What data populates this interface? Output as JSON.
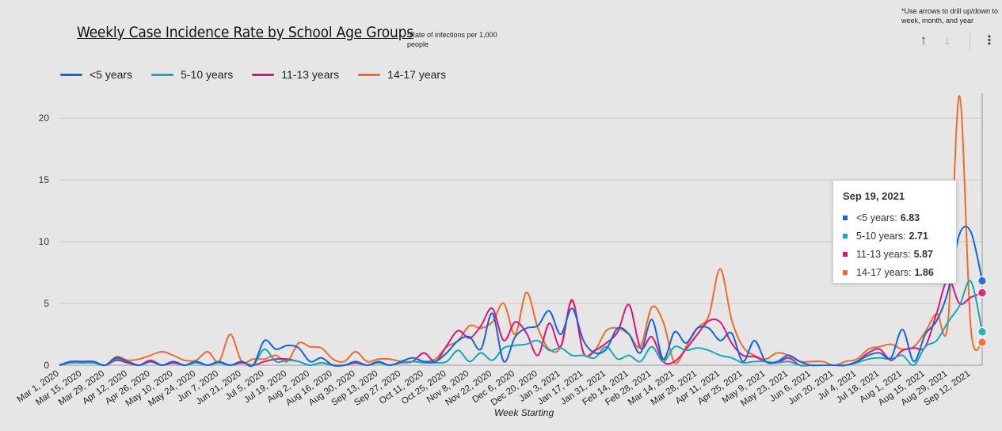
{
  "header": {
    "title": "Weekly Case Incidence Rate by School Age Groups",
    "subnote": "*Rate of infections per 1,000 people",
    "drill_note": "*Use arrows to drill up/down to week, month, and year"
  },
  "controls": {
    "up_icon": "arrow-up-icon",
    "down_icon": "arrow-down-icon",
    "menu_icon": "more-vert-icon",
    "up_glyph": "↑",
    "down_glyph": "↓",
    "menu_glyph": "⋮"
  },
  "tooltip": {
    "date": "Sep 19, 2021",
    "rows": [
      {
        "label": "<5 years:",
        "value": "6.83",
        "color": "#1565d8"
      },
      {
        "label": "5-10 years:",
        "value": "2.71",
        "color": "#16a9b9"
      },
      {
        "label": "11-13 years:",
        "value": "5.87",
        "color": "#e0147e"
      },
      {
        "label": "14-17 years:",
        "value": "1.86",
        "color": "#f26b2a"
      }
    ]
  },
  "chart_data": {
    "type": "line",
    "title": "Weekly Case Incidence Rate by School Age Groups",
    "xlabel": "Week Starting",
    "ylabel": "",
    "ylim": [
      0,
      22
    ],
    "yticks": [
      0,
      5,
      10,
      15,
      20
    ],
    "grid": true,
    "legend_position": "top-left",
    "x": [
      "Mar 1, 2020",
      "Mar 8, 2020",
      "Mar 15, 2020",
      "Mar 22, 2020",
      "Mar 29, 2020",
      "Apr 5, 2020",
      "Apr 12, 2020",
      "Apr 19, 2020",
      "Apr 26, 2020",
      "May 3, 2020",
      "May 10, 2020",
      "May 17, 2020",
      "May 24, 2020",
      "May 31, 2020",
      "Jun 7, 2020",
      "Jun 14, 2020",
      "Jun 21, 2020",
      "Jun 28, 2020",
      "Jul 5, 2020",
      "Jul 12, 2020",
      "Jul 19, 2020",
      "Jul 26, 2020",
      "Aug 2, 2020",
      "Aug 9, 2020",
      "Aug 16, 2020",
      "Aug 23, 2020",
      "Aug 30, 2020",
      "Sep 6, 2020",
      "Sep 13, 2020",
      "Sep 20, 2020",
      "Sep 27, 2020",
      "Oct 4, 2020",
      "Oct 11, 2020",
      "Oct 18, 2020",
      "Oct 25, 2020",
      "Nov 1, 2020",
      "Nov 8, 2020",
      "Nov 15, 2020",
      "Nov 22, 2020",
      "Nov 29, 2020",
      "Dec 6, 2020",
      "Dec 13, 2020",
      "Dec 20, 2020",
      "Dec 27, 2020",
      "Jan 3, 2021",
      "Jan 10, 2021",
      "Jan 17, 2021",
      "Jan 24, 2021",
      "Jan 31, 2021",
      "Feb 7, 2021",
      "Feb 14, 2021",
      "Feb 21, 2021",
      "Feb 28, 2021",
      "Mar 7, 2021",
      "Mar 14, 2021",
      "Mar 21, 2021",
      "Mar 28, 2021",
      "Apr 4, 2021",
      "Apr 11, 2021",
      "Apr 18, 2021",
      "Apr 25, 2021",
      "May 2, 2021",
      "May 9, 2021",
      "May 16, 2021",
      "May 23, 2021",
      "May 30, 2021",
      "Jun 6, 2021",
      "Jun 13, 2021",
      "Jun 20, 2021",
      "Jun 27, 2021",
      "Jul 4, 2021",
      "Jul 11, 2021",
      "Jul 18, 2021",
      "Jul 25, 2021",
      "Aug 1, 2021",
      "Aug 8, 2021",
      "Aug 15, 2021",
      "Aug 22, 2021",
      "Aug 29, 2021",
      "Sep 5, 2021",
      "Sep 12, 2021",
      "Sep 19, 2021"
    ],
    "tick_labels": [
      "Mar 1, 2020",
      "Mar 15, 2020",
      "Mar 29, 2020",
      "Apr 12, 2020",
      "Apr 26, 2020",
      "May 10, 2020",
      "May 24, 2020",
      "Jun 7, 2020",
      "Jun 21, 2020",
      "Jul 5, 2020",
      "Jul 19, 2020",
      "Aug 2, 2020",
      "Aug 16, 2020",
      "Aug 30, 2020",
      "Sep 13, 2020",
      "Sep 27, 2020",
      "Oct 11, 2020",
      "Oct 25, 2020",
      "Nov 8, 2020",
      "Nov 22, 2020",
      "Dec 6, 2020",
      "Dec 20, 2020",
      "Jan 3, 2021",
      "Jan 17, 2021",
      "Jan 31, 2021",
      "Feb 14, 2021",
      "Feb 28, 2021",
      "Mar 14, 2021",
      "Mar 28, 2021",
      "Apr 11, 2021",
      "Apr 25, 2021",
      "May 9, 2021",
      "May 23, 2021",
      "Jun 6, 2021",
      "Jun 20, 2021",
      "Jul 4, 2021",
      "Jul 18, 2021",
      "Aug 1, 2021",
      "Aug 15, 2021",
      "Aug 29, 2021",
      "Sep 12, 2021"
    ],
    "hover_x": "Sep 19, 2021",
    "series": [
      {
        "name": "<5 years",
        "color": "#1565d8",
        "values": [
          0,
          0.3,
          0.3,
          0.3,
          0,
          0.6,
          0.3,
          0,
          0.3,
          0,
          0.3,
          0,
          0.3,
          0,
          0.3,
          0,
          0.3,
          0,
          2.0,
          1.3,
          1.6,
          1.4,
          0.3,
          0.6,
          0,
          0,
          0.3,
          0,
          0.3,
          0,
          0.3,
          0.6,
          0.3,
          0.3,
          1.0,
          2.0,
          2.3,
          1.3,
          4.2,
          0.3,
          2.3,
          3.0,
          3.2,
          4.4,
          2.5,
          4.6,
          2.0,
          1.0,
          1.3,
          3.0,
          2.5,
          1.0,
          3.7,
          0.5,
          2.7,
          1.8,
          3.0,
          3.0,
          2.0,
          2.6,
          0.3,
          2.0,
          0.3,
          0.3,
          0.8,
          0.3,
          0,
          0,
          0,
          0,
          0.3,
          0.8,
          1.0,
          0.6,
          2.9,
          0.3,
          2.5,
          3.6,
          6.0,
          10.6,
          10.8,
          6.83
        ]
      },
      {
        "name": "5-10 years",
        "color": "#16a9b9",
        "values": [
          0,
          0.2,
          0.2,
          0.2,
          0,
          0.5,
          0.3,
          0,
          0.3,
          0,
          0.3,
          0,
          0.2,
          0,
          0.2,
          0,
          0.3,
          0,
          1.3,
          0.3,
          0.4,
          0.3,
          0,
          0.2,
          0,
          0,
          0.3,
          0,
          0.2,
          0,
          0.2,
          0.3,
          0.2,
          0.2,
          0.3,
          1.2,
          0.3,
          1.0,
          0.4,
          1.4,
          1.6,
          1.7,
          2.0,
          1.2,
          1.4,
          0.8,
          0.8,
          0.6,
          1.5,
          0.5,
          0.8,
          0.3,
          1.5,
          0.3,
          1.5,
          1.2,
          1.4,
          1.2,
          0.8,
          0.6,
          0.2,
          0.3,
          0.3,
          0.2,
          0.3,
          0,
          0,
          0,
          0,
          0,
          0.2,
          0.5,
          0.6,
          0.5,
          0.8,
          0,
          1.5,
          2.0,
          3.5,
          4.8,
          6.8,
          2.71
        ]
      },
      {
        "name": "11-13 years",
        "color": "#e0147e",
        "values": [
          0,
          0.2,
          0.2,
          0.2,
          0,
          0.4,
          0.2,
          0,
          0.4,
          0,
          0.2,
          0,
          0.3,
          0,
          0.2,
          0,
          0.2,
          0,
          0.3,
          0.5,
          0.5,
          0.3,
          0,
          0.2,
          0,
          0,
          0.2,
          0,
          0.2,
          0,
          0.2,
          0.3,
          1.0,
          0.3,
          1.6,
          2.8,
          2.2,
          3.2,
          4.6,
          2.0,
          3.5,
          2.6,
          0.8,
          3.4,
          1.5,
          5.3,
          1.0,
          1.2,
          1.8,
          2.7,
          4.9,
          1.4,
          2.3,
          0.3,
          0.3,
          1.3,
          2.5,
          3.6,
          3.5,
          1.8,
          0.8,
          0.7,
          0.3,
          0.2,
          0.6,
          0,
          0,
          0,
          0,
          0,
          0.3,
          1.0,
          1.3,
          0.4,
          1.2,
          1.4,
          1.5,
          4.2,
          7.0,
          5.0,
          5.5,
          5.87
        ]
      },
      {
        "name": "14-17 years",
        "color": "#f26b2a",
        "values": [
          0,
          0.3,
          0.2,
          0.3,
          0,
          0.7,
          0.4,
          0.5,
          0.8,
          1.1,
          0.8,
          0.4,
          0.4,
          1.1,
          0.3,
          2.5,
          0.3,
          0.5,
          0.5,
          0.8,
          0.3,
          1.8,
          1.5,
          1.4,
          0.5,
          0.3,
          1.1,
          0.3,
          0.5,
          0.5,
          0.3,
          0.3,
          0.3,
          0.5,
          1.5,
          2.0,
          3.2,
          3.0,
          3.5,
          5.0,
          2.5,
          5.9,
          3.0,
          1.3,
          1.5,
          5.2,
          1.0,
          1.2,
          2.8,
          3.0,
          2.5,
          1.5,
          4.7,
          3.5,
          0.2,
          1.5,
          3.0,
          4.0,
          7.8,
          3.7,
          1.5,
          0.8,
          0.5,
          1.0,
          0.8,
          0.3,
          0.3,
          0.3,
          0,
          0.3,
          0.5,
          1.3,
          1.5,
          1.7,
          1.3,
          1.5,
          2.7,
          4.2,
          3.5,
          21.8,
          3.0,
          1.86
        ]
      }
    ]
  }
}
